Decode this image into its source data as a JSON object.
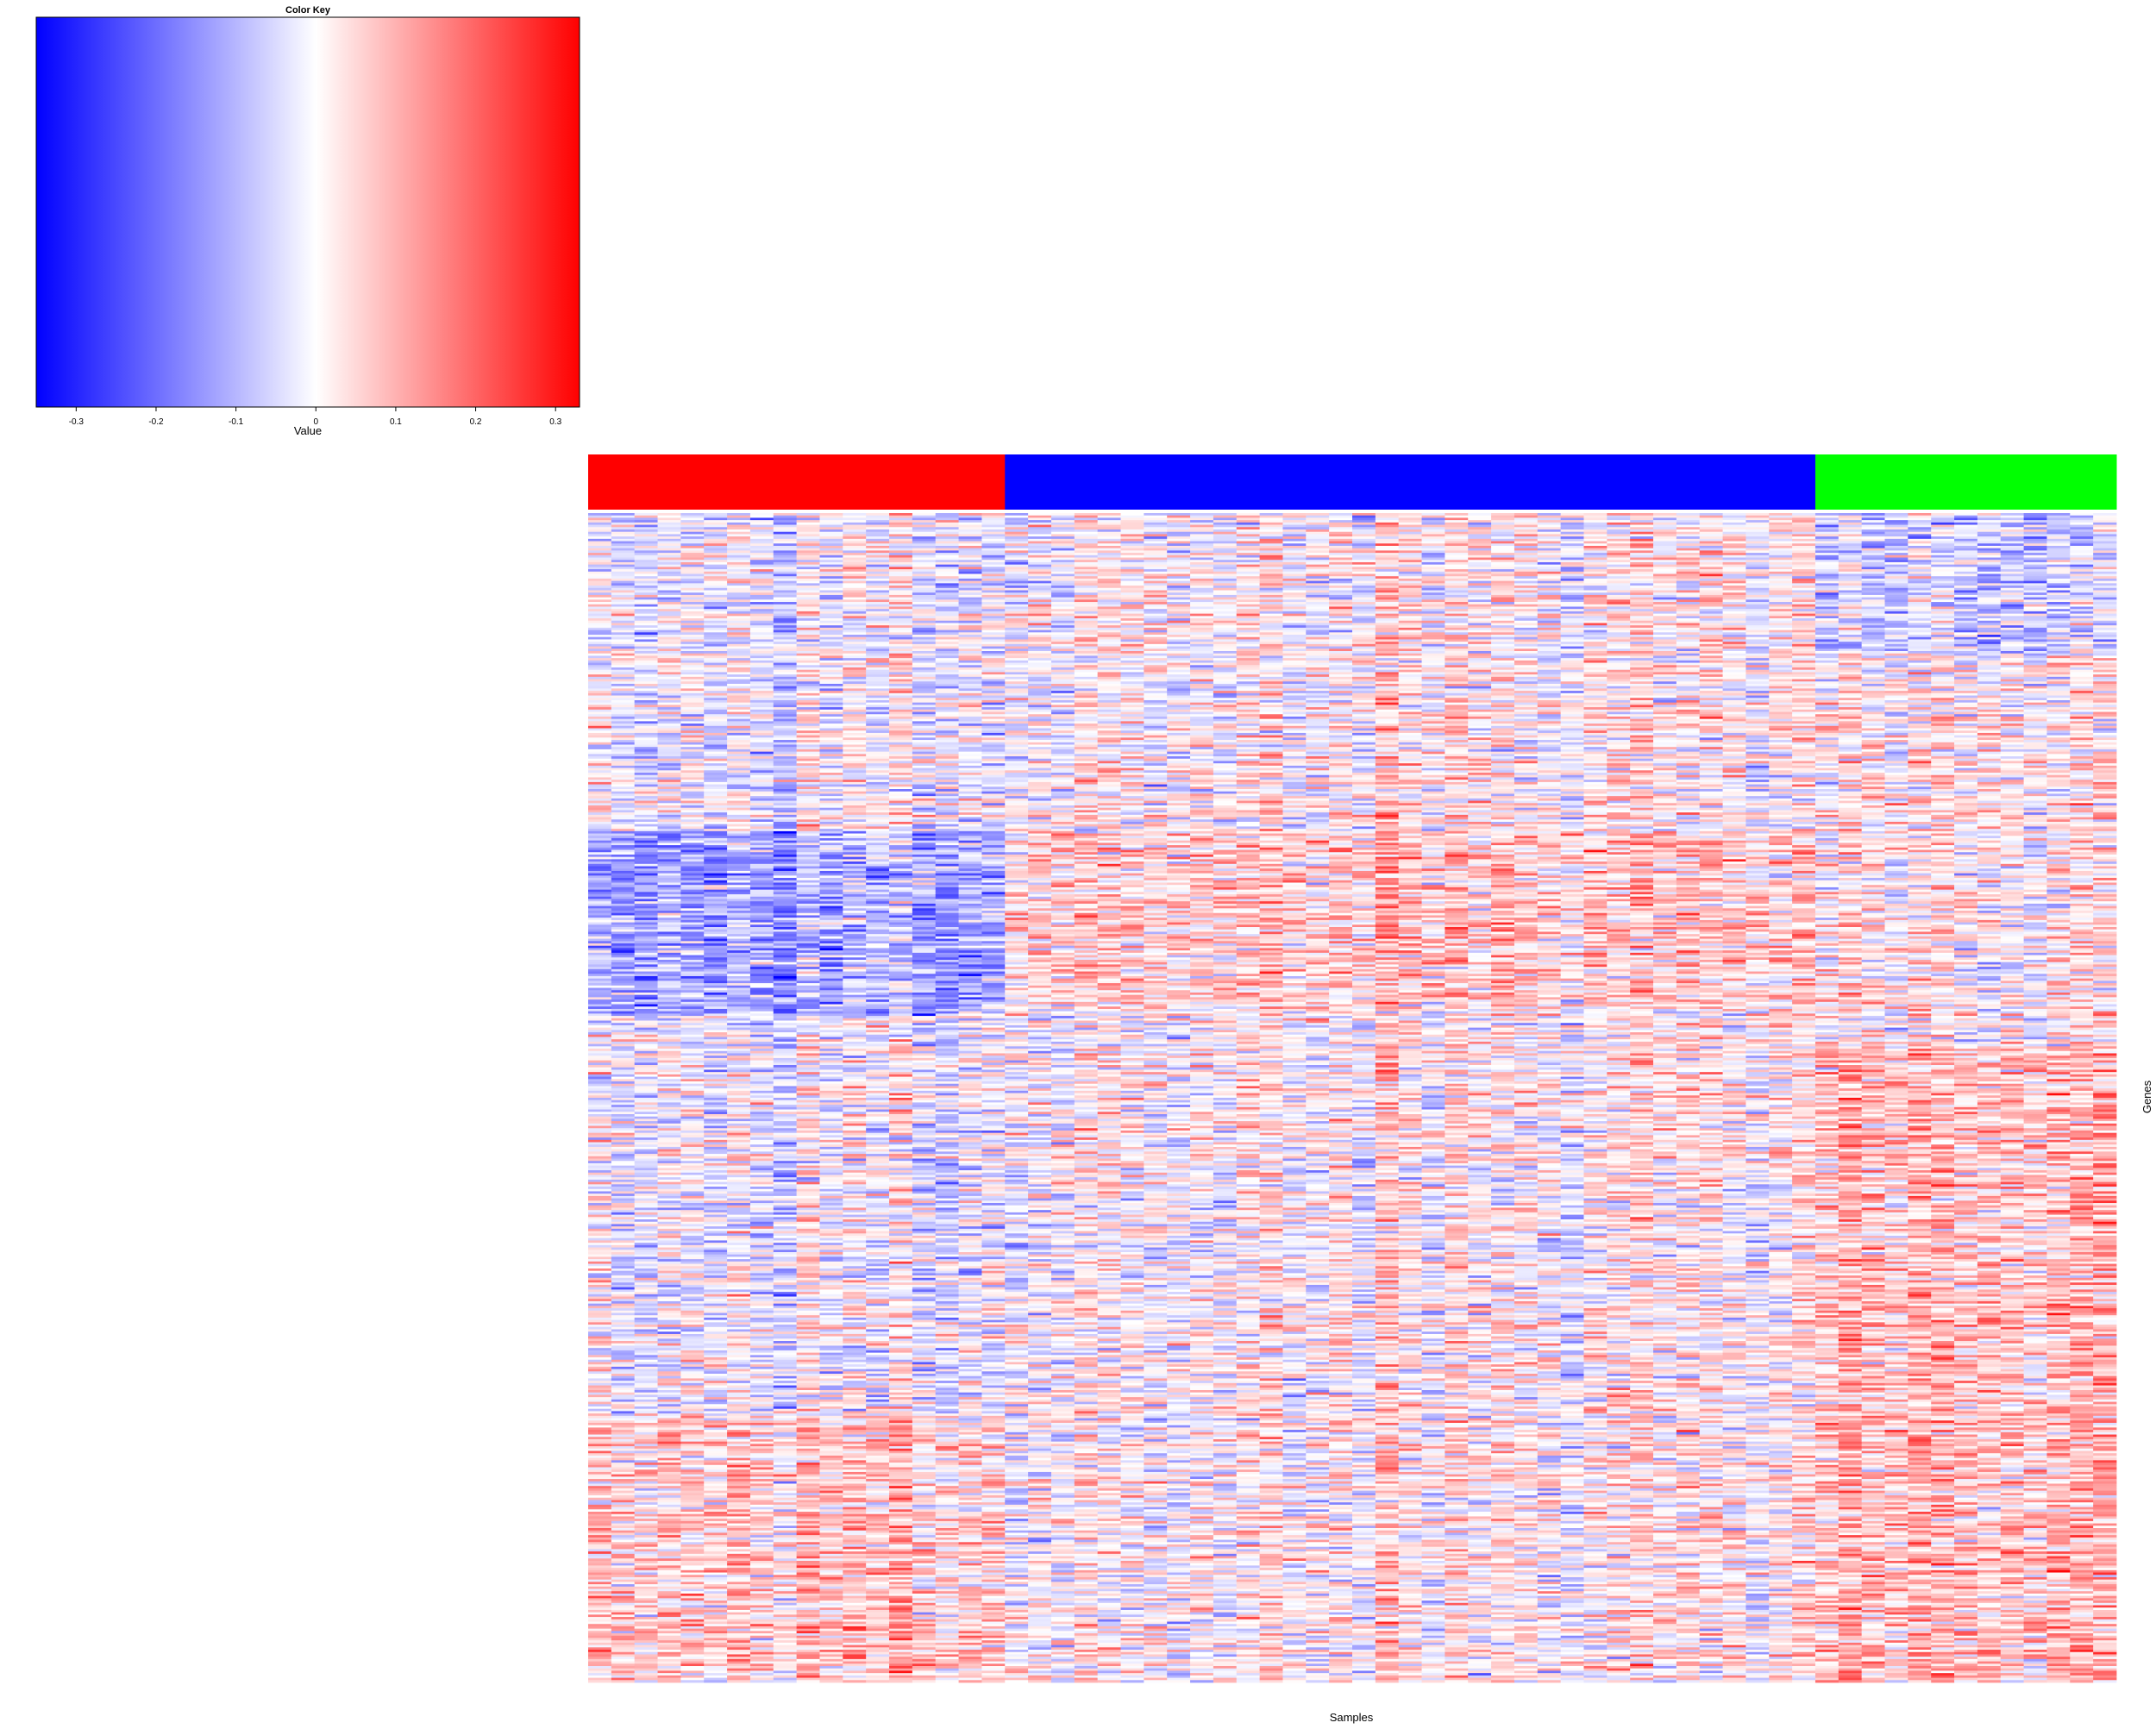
{
  "chart_data": [
    {
      "type": "colorbar",
      "title": "Color Key",
      "xlabel": "Value",
      "range": [
        -0.35,
        0.33
      ],
      "ticks": [
        -0.3,
        -0.2,
        -0.1,
        0,
        0.1,
        0.2,
        0.3
      ],
      "tick_labels": [
        "-0.3",
        "-0.2",
        "-0.1",
        "0",
        "0.1",
        "0.2",
        "0.3"
      ],
      "colors": {
        "low": "#0000ff",
        "mid": "#ffffff",
        "high": "#ff0000"
      }
    },
    {
      "type": "heatmap",
      "xlabel": "Samples",
      "ylabel": "Genes",
      "n_samples": 66,
      "n_genes": 500,
      "value_range": [
        -0.35,
        0.33
      ],
      "sample_groups": [
        {
          "color": "#ff0000",
          "count": 18
        },
        {
          "color": "#0000ff",
          "count": 35
        },
        {
          "color": "#00ff00",
          "count": 13
        }
      ]
    }
  ]
}
